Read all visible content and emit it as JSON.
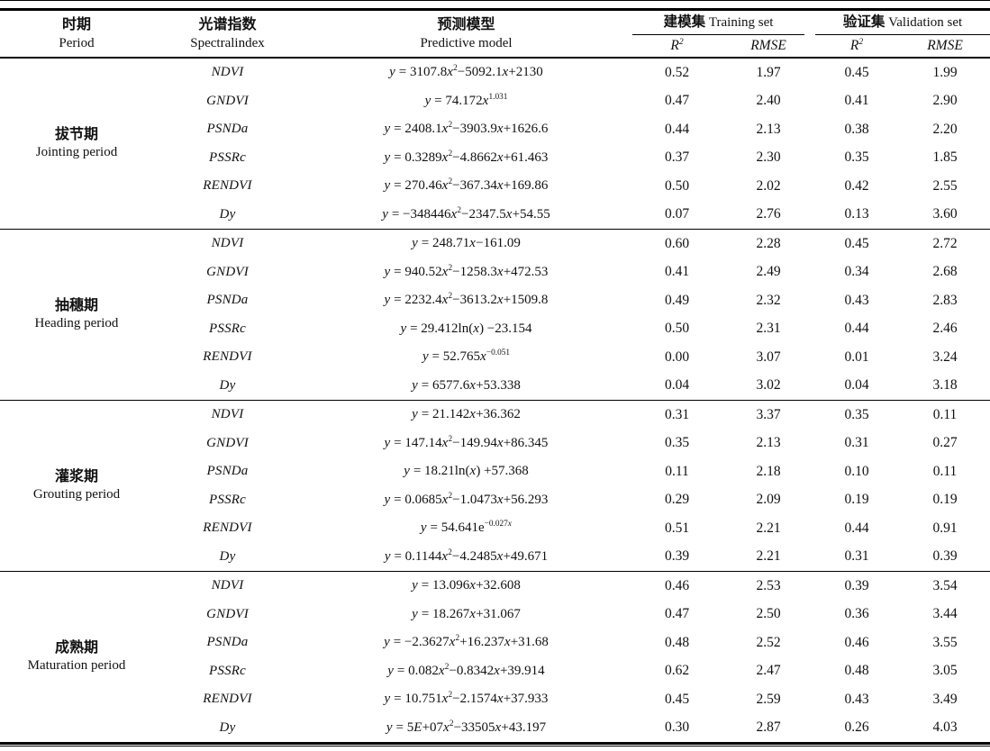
{
  "colors": {
    "text": "#111111",
    "rule": "#000000",
    "background": "#ffffff"
  },
  "table": {
    "header": {
      "period": {
        "zh": "时期",
        "en": "Period"
      },
      "index": {
        "zh": "光谱指数",
        "en": "Spectralindex"
      },
      "model": {
        "zh": "预测模型",
        "en": "Predictive model"
      },
      "training": {
        "zh": "建模集",
        "en": "Training set"
      },
      "validation": {
        "zh": "验证集",
        "en": "Validation set"
      },
      "stats": {
        "r2": "R^{2}",
        "rmse": "RMSE"
      }
    },
    "groups": [
      {
        "period_zh": "拔节期",
        "period_en": "Jointing period",
        "rows": [
          {
            "index": "NDVI",
            "model": "y = 3107.8x^{2}−5092.1x+2130",
            "t_r2": "0.52",
            "t_rmse": "1.97",
            "v_r2": "0.45",
            "v_rmse": "1.99"
          },
          {
            "index": "GNDVI",
            "model": "y = 74.172x^{1.031}",
            "t_r2": "0.47",
            "t_rmse": "2.40",
            "v_r2": "0.41",
            "v_rmse": "2.90"
          },
          {
            "index": "PSNDa",
            "model": "y = 2408.1x^{2}−3903.9x+1626.6",
            "t_r2": "0.44",
            "t_rmse": "2.13",
            "v_r2": "0.38",
            "v_rmse": "2.20"
          },
          {
            "index": "PSSRc",
            "model": "y = 0.3289x^{2}−4.8662x+61.463",
            "t_r2": "0.37",
            "t_rmse": "2.30",
            "v_r2": "0.35",
            "v_rmse": "1.85"
          },
          {
            "index": "RENDVI",
            "model": "y = 270.46x^{2}−367.34x+169.86",
            "t_r2": "0.50",
            "t_rmse": "2.02",
            "v_r2": "0.42",
            "v_rmse": "2.55"
          },
          {
            "index": "Dy",
            "model": "y = −348446x^{2}−2347.5x+54.55",
            "t_r2": "0.07",
            "t_rmse": "2.76",
            "v_r2": "0.13",
            "v_rmse": "3.60"
          }
        ]
      },
      {
        "period_zh": "抽穗期",
        "period_en": "Heading period",
        "rows": [
          {
            "index": "NDVI",
            "model": "y = 248.71x−161.09",
            "t_r2": "0.60",
            "t_rmse": "2.28",
            "v_r2": "0.45",
            "v_rmse": "2.72"
          },
          {
            "index": "GNDVI",
            "model": "y = 940.52x^{2}−1258.3x+472.53",
            "t_r2": "0.41",
            "t_rmse": "2.49",
            "v_r2": "0.34",
            "v_rmse": "2.68"
          },
          {
            "index": "PSNDa",
            "model": "y = 2232.4x^{2}−3613.2x+1509.8",
            "t_r2": "0.49",
            "t_rmse": "2.32",
            "v_r2": "0.43",
            "v_rmse": "2.83"
          },
          {
            "index": "PSSRc",
            "model": "y = 29.412ln(x) −23.154",
            "t_r2": "0.50",
            "t_rmse": "2.31",
            "v_r2": "0.44",
            "v_rmse": "2.46"
          },
          {
            "index": "RENDVI",
            "model": "y = 52.765x^{−0.051}",
            "t_r2": "0.00",
            "t_rmse": "3.07",
            "v_r2": "0.01",
            "v_rmse": "3.24"
          },
          {
            "index": "Dy",
            "model": "y = 6577.6x+53.338",
            "t_r2": "0.04",
            "t_rmse": "3.02",
            "v_r2": "0.04",
            "v_rmse": "3.18"
          }
        ]
      },
      {
        "period_zh": "灌浆期",
        "period_en": "Grouting period",
        "rows": [
          {
            "index": "NDVI",
            "model": "y = 21.142x+36.362",
            "t_r2": "0.31",
            "t_rmse": "3.37",
            "v_r2": "0.35",
            "v_rmse": "0.11"
          },
          {
            "index": "GNDVI",
            "model": "y = 147.14x^{2}−149.94x+86.345",
            "t_r2": "0.35",
            "t_rmse": "2.13",
            "v_r2": "0.31",
            "v_rmse": "0.27"
          },
          {
            "index": "PSNDa",
            "model": "y = 18.21ln(x) +57.368",
            "t_r2": "0.11",
            "t_rmse": "2.18",
            "v_r2": "0.10",
            "v_rmse": "0.11"
          },
          {
            "index": "PSSRc",
            "model": "y = 0.0685x^{2}−1.0473x+56.293",
            "t_r2": "0.29",
            "t_rmse": "2.09",
            "v_r2": "0.19",
            "v_rmse": "0.19"
          },
          {
            "index": "RENDVI",
            "model": "y = 54.641e^{−0.027x}",
            "t_r2": "0.51",
            "t_rmse": "2.21",
            "v_r2": "0.44",
            "v_rmse": "0.91"
          },
          {
            "index": "Dy",
            "model": "y = 0.1144x^{2}−4.2485x+49.671",
            "t_r2": "0.39",
            "t_rmse": "2.21",
            "v_r2": "0.31",
            "v_rmse": "0.39"
          }
        ]
      },
      {
        "period_zh": "成熟期",
        "period_en": "Maturation period",
        "rows": [
          {
            "index": "NDVI",
            "model": "y = 13.096x+32.608",
            "t_r2": "0.46",
            "t_rmse": "2.53",
            "v_r2": "0.39",
            "v_rmse": "3.54"
          },
          {
            "index": "GNDVI",
            "model": "y = 18.267x+31.067",
            "t_r2": "0.47",
            "t_rmse": "2.50",
            "v_r2": "0.36",
            "v_rmse": "3.44"
          },
          {
            "index": "PSNDa",
            "model": "y = −2.3627x^{2}+16.237x+31.68",
            "t_r2": "0.48",
            "t_rmse": "2.52",
            "v_r2": "0.46",
            "v_rmse": "3.55"
          },
          {
            "index": "PSSRc",
            "model": "y = 0.082x^{2}−0.8342x+39.914",
            "t_r2": "0.62",
            "t_rmse": "2.47",
            "v_r2": "0.48",
            "v_rmse": "3.05"
          },
          {
            "index": "RENDVI",
            "model": "y = 10.751x^{2}−2.1574x+37.933",
            "t_r2": "0.45",
            "t_rmse": "2.59",
            "v_r2": "0.43",
            "v_rmse": "3.49"
          },
          {
            "index": "Dy",
            "model": "y = 5E+07x^{2}−33505x+43.197",
            "t_r2": "0.30",
            "t_rmse": "2.87",
            "v_r2": "0.26",
            "v_rmse": "4.03"
          }
        ]
      }
    ]
  }
}
